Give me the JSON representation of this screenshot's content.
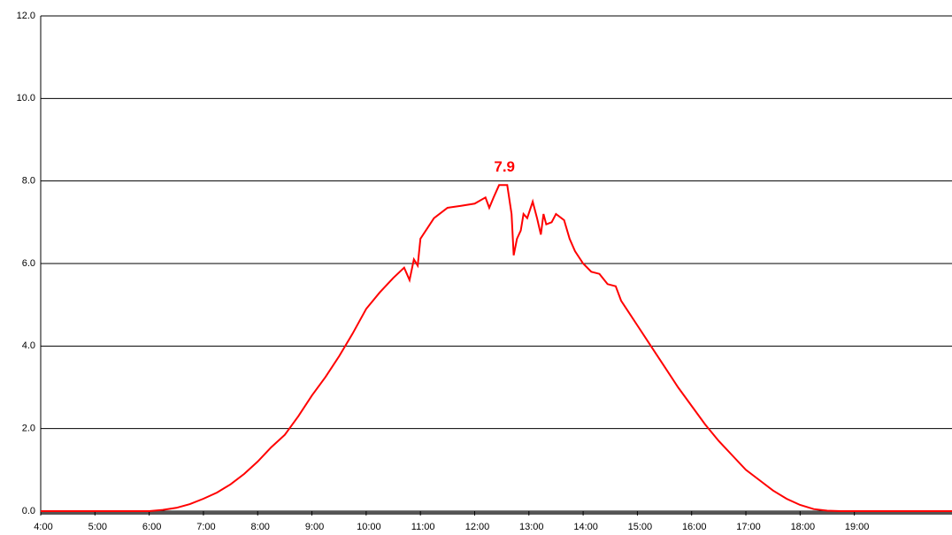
{
  "chart_data": {
    "type": "line",
    "x": [
      4,
      4.5,
      5,
      5.5,
      6,
      6.25,
      6.5,
      6.75,
      7,
      7.25,
      7.5,
      7.75,
      8,
      8.25,
      8.5,
      8.75,
      9,
      9.25,
      9.5,
      9.75,
      10,
      10.25,
      10.5,
      10.7,
      10.8,
      10.88,
      10.95,
      11,
      11.25,
      11.5,
      11.75,
      12,
      12.2,
      12.27,
      12.35,
      12.45,
      12.6,
      12.68,
      12.72,
      12.78,
      12.85,
      12.9,
      12.97,
      13.07,
      13.15,
      13.22,
      13.27,
      13.32,
      13.42,
      13.5,
      13.65,
      13.75,
      13.85,
      14,
      14.15,
      14.3,
      14.45,
      14.6,
      14.7,
      14.8,
      15,
      15.25,
      15.5,
      15.75,
      16,
      16.25,
      16.5,
      16.75,
      17,
      17.25,
      17.5,
      17.75,
      18,
      18.25,
      18.5,
      18.75,
      19,
      19.5,
      20,
      20.5,
      20.8
    ],
    "values": [
      0,
      0,
      0,
      0,
      0,
      0.03,
      0.08,
      0.17,
      0.3,
      0.45,
      0.65,
      0.9,
      1.2,
      1.55,
      1.85,
      2.3,
      2.8,
      3.25,
      3.75,
      4.3,
      4.9,
      5.3,
      5.65,
      5.9,
      5.6,
      6.1,
      5.95,
      6.6,
      7.1,
      7.35,
      7.4,
      7.45,
      7.6,
      7.35,
      7.6,
      7.9,
      7.9,
      7.2,
      6.2,
      6.6,
      6.8,
      7.2,
      7.1,
      7.5,
      7.1,
      6.7,
      7.2,
      6.95,
      7.0,
      7.2,
      7.05,
      6.6,
      6.3,
      6.0,
      5.8,
      5.75,
      5.5,
      5.45,
      5.1,
      4.9,
      4.5,
      4.0,
      3.5,
      3.0,
      2.55,
      2.1,
      1.7,
      1.35,
      1.0,
      0.75,
      0.5,
      0.3,
      0.15,
      0.05,
      0.01,
      0,
      0,
      0,
      0,
      0,
      0
    ],
    "color": "#ff0000",
    "annotation": {
      "x": 12.55,
      "value": 7.9
    },
    "xlim": [
      4,
      20.8
    ],
    "xticks": [
      {
        "value": 4,
        "label": "4:00"
      },
      {
        "value": 5,
        "label": "5:00"
      },
      {
        "value": 6,
        "label": "6:00"
      },
      {
        "value": 7,
        "label": "7:00"
      },
      {
        "value": 8,
        "label": "8:00"
      },
      {
        "value": 9,
        "label": "9:00"
      },
      {
        "value": 10,
        "label": "10:00"
      },
      {
        "value": 11,
        "label": "11:00"
      },
      {
        "value": 12,
        "label": "12:00"
      },
      {
        "value": 13,
        "label": "13:00"
      },
      {
        "value": 14,
        "label": "14:00"
      },
      {
        "value": 15,
        "label": "15:00"
      },
      {
        "value": 16,
        "label": "16:00"
      },
      {
        "value": 17,
        "label": "17:00"
      },
      {
        "value": 18,
        "label": "18:00"
      },
      {
        "value": 19,
        "label": "19:00"
      }
    ],
    "ylim": [
      0,
      12
    ],
    "yticks": [
      {
        "value": 0,
        "label": "0.0"
      },
      {
        "value": 2,
        "label": "2.0"
      },
      {
        "value": 4,
        "label": "4.0"
      },
      {
        "value": 6,
        "label": "6.0"
      },
      {
        "value": 8,
        "label": "8.0"
      },
      {
        "value": 10,
        "label": "10.0"
      },
      {
        "value": 12,
        "label": "12.0"
      }
    ],
    "grid": true
  }
}
